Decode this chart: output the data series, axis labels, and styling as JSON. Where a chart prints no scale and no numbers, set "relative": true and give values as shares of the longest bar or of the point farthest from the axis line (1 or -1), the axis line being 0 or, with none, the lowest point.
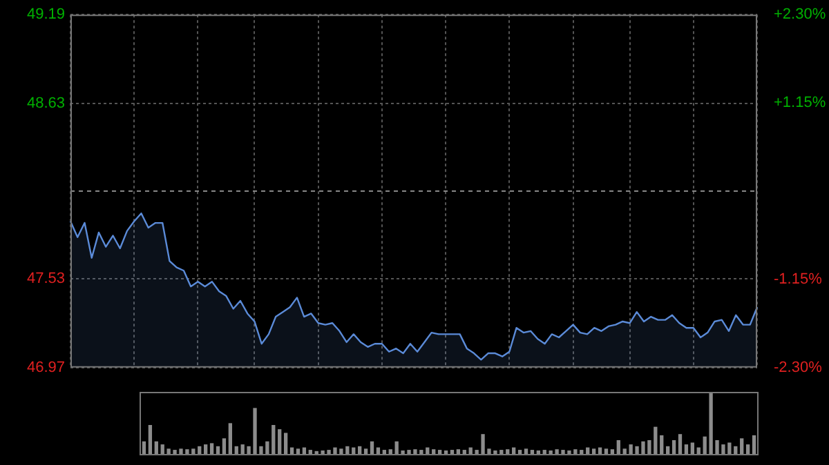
{
  "chart_data": [
    {
      "type": "area",
      "color": "#5b8bd8",
      "categories": [
        null,
        null,
        null,
        null,
        null,
        null,
        null,
        null,
        null,
        null,
        null,
        null,
        null,
        null,
        null,
        null,
        null,
        null,
        null,
        null,
        null,
        null,
        null,
        null,
        null,
        null,
        null,
        null,
        null,
        null,
        null,
        null,
        null,
        null,
        null,
        null,
        null,
        null,
        null,
        null,
        null,
        null,
        null,
        null,
        null,
        null,
        null,
        null,
        null,
        null,
        null,
        null,
        null,
        null,
        null,
        null,
        null,
        null,
        null,
        null,
        null,
        null,
        null,
        null,
        null,
        null,
        null,
        null,
        null,
        null,
        null,
        null,
        null,
        null,
        null,
        null,
        null,
        null,
        null,
        null,
        null,
        null,
        null,
        null,
        null,
        null,
        null,
        null,
        null,
        null,
        null,
        null,
        null,
        null,
        null,
        null,
        null,
        null
      ],
      "values": [
        47.89,
        47.79,
        47.88,
        47.66,
        47.82,
        47.73,
        47.8,
        47.72,
        47.83,
        47.89,
        47.94,
        47.85,
        47.88,
        47.88,
        47.64,
        47.6,
        47.58,
        47.48,
        47.51,
        47.48,
        47.51,
        47.45,
        47.42,
        47.34,
        47.39,
        47.31,
        47.26,
        47.12,
        47.18,
        47.29,
        47.32,
        47.35,
        47.41,
        47.29,
        47.31,
        47.25,
        47.24,
        47.25,
        47.2,
        47.13,
        47.18,
        47.13,
        47.1,
        47.12,
        47.12,
        47.07,
        47.09,
        47.06,
        47.12,
        47.07,
        47.13,
        47.19,
        47.18,
        47.18,
        47.18,
        47.18,
        47.09,
        47.06,
        47.02,
        47.06,
        47.06,
        47.04,
        47.07,
        47.22,
        47.19,
        47.2,
        47.15,
        47.12,
        47.18,
        47.16,
        47.2,
        47.24,
        47.19,
        47.18,
        47.22,
        47.2,
        47.23,
        47.24,
        47.26,
        47.25,
        47.32,
        47.26,
        47.29,
        47.27,
        47.27,
        47.3,
        47.25,
        47.22,
        47.22,
        47.16,
        47.19,
        47.26,
        47.27,
        47.2,
        47.3,
        47.24,
        47.24,
        47.35
      ],
      "ylim": [
        46.97,
        49.19
      ],
      "yticks": [
        49.19,
        48.63,
        47.53,
        46.97
      ],
      "y2lim": [
        -2.3,
        2.3
      ],
      "y2ticks": [
        {
          "value": 2.3,
          "label": "+2.30%"
        },
        {
          "value": 1.15,
          "label": "+1.15%"
        },
        {
          "value": -1.15,
          "label": "-1.15%"
        },
        {
          "value": -2.3,
          "label": "-2.30%"
        }
      ],
      "ref_lines": [
        {
          "axis": "y",
          "value": 48.08,
          "line_style": "dashed"
        }
      ],
      "grid": true,
      "tick_labels": "y"
    },
    {
      "type": "bar",
      "color": "#8c8c8c",
      "relative": true,
      "categories": [
        null,
        null,
        null,
        null,
        null,
        null,
        null,
        null,
        null,
        null,
        null,
        null,
        null,
        null,
        null,
        null,
        null,
        null,
        null,
        null,
        null,
        null,
        null,
        null,
        null,
        null,
        null,
        null,
        null,
        null,
        null,
        null,
        null,
        null,
        null,
        null,
        null,
        null,
        null,
        null,
        null,
        null,
        null,
        null,
        null,
        null,
        null,
        null,
        null,
        null,
        null,
        null,
        null,
        null,
        null,
        null,
        null,
        null,
        null,
        null,
        null,
        null,
        null,
        null,
        null,
        null,
        null,
        null,
        null,
        null,
        null,
        null,
        null,
        null,
        null,
        null,
        null,
        null,
        null,
        null,
        null,
        null,
        null,
        null,
        null,
        null,
        null,
        null,
        null,
        null,
        null,
        null,
        null,
        null,
        null,
        null,
        null,
        null,
        null,
        null
      ],
      "values": [
        0.2,
        0.47,
        0.2,
        0.15,
        0.08,
        0.06,
        0.08,
        0.07,
        0.08,
        0.12,
        0.15,
        0.17,
        0.12,
        0.25,
        0.5,
        0.12,
        0.15,
        0.12,
        0.75,
        0.12,
        0.2,
        0.47,
        0.4,
        0.34,
        0.1,
        0.08,
        0.1,
        0.06,
        0.04,
        0.05,
        0.06,
        0.1,
        0.08,
        0.12,
        0.1,
        0.12,
        0.08,
        0.2,
        0.1,
        0.06,
        0.07,
        0.2,
        0.05,
        0.06,
        0.07,
        0.06,
        0.1,
        0.07,
        0.06,
        0.05,
        0.06,
        0.07,
        0.06,
        0.1,
        0.06,
        0.32,
        0.08,
        0.05,
        0.06,
        0.07,
        0.1,
        0.06,
        0.08,
        0.06,
        0.05,
        0.06,
        0.05,
        0.07,
        0.06,
        0.05,
        0.07,
        0.06,
        0.1,
        0.08,
        0.1,
        0.08,
        0.07,
        0.22,
        0.08,
        0.15,
        0.12,
        0.2,
        0.22,
        0.44,
        0.3,
        0.12,
        0.22,
        0.32,
        0.15,
        0.18,
        0.1,
        0.28,
        1.0,
        0.22,
        0.15,
        0.18,
        0.12,
        0.25,
        0.15,
        0.3
      ],
      "tick_labels": false
    }
  ]
}
